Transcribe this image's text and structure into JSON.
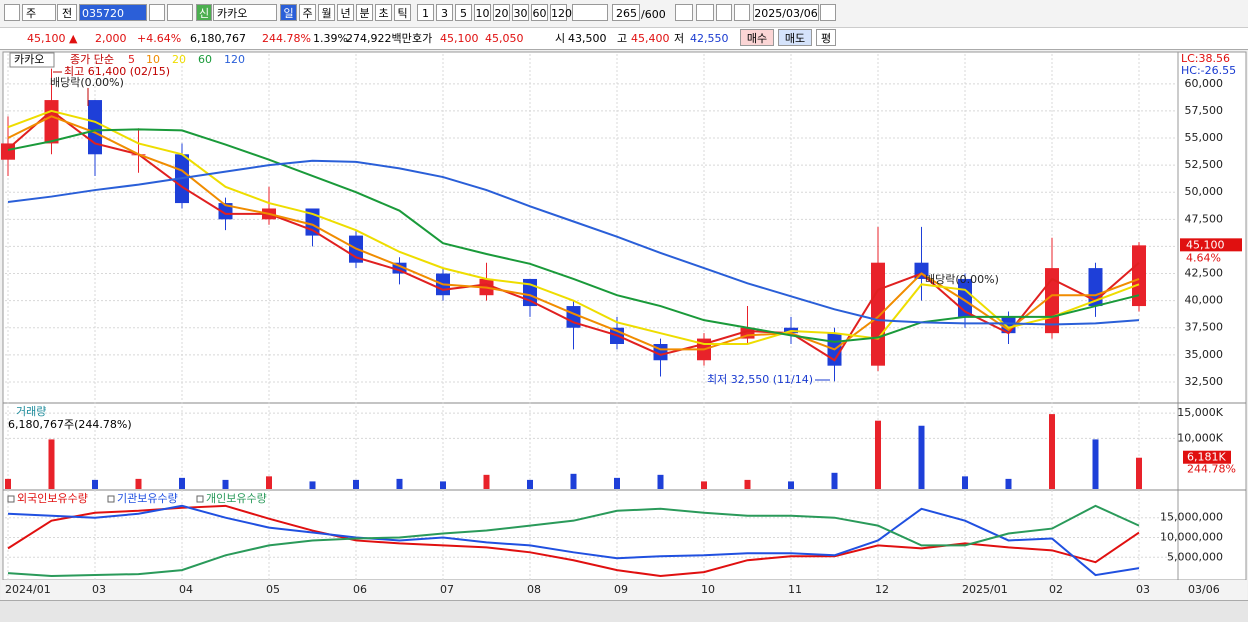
{
  "toolbar": {
    "period": "주",
    "prev": "전",
    "code": "035720",
    "badge": "신",
    "name": "카카오",
    "intervals": [
      "일",
      "주",
      "월",
      "년",
      "분",
      "초",
      "틱"
    ],
    "multipliers": [
      "1",
      "3",
      "5",
      "10",
      "20",
      "30",
      "60",
      "120"
    ],
    "count": "265",
    "max": "/600",
    "date": "2025/03/06"
  },
  "quote": {
    "price": "45,100",
    "arrow": "▲",
    "change": "2,000",
    "rate": "+4.64%",
    "volume": "6,180,767",
    "volume_rate": "244.78%",
    "turnover": "1.39%",
    "amount": "274,922백만",
    "ask_label": "호가",
    "ask": "45,100",
    "bid": "45,050",
    "open_label": "시",
    "open": "43,500",
    "high_label": "고",
    "high": "45,400",
    "low_label": "저",
    "low": "42,550",
    "buy": "매수",
    "sell": "매도",
    "avg": "평"
  },
  "x_end_label": "03/06",
  "chart_data": [
    {
      "type": "candlestick",
      "title": "카카오",
      "legend_label": "종가 단순",
      "up_color": "#e8222a",
      "down_color": "#1e3fd8",
      "open": [
        53000,
        54500,
        58500,
        53500,
        53500,
        49000,
        47500,
        48500,
        46000,
        43500,
        42500,
        40500,
        42000,
        39500,
        37500,
        36000,
        34500,
        36500,
        37500,
        37000,
        34000,
        43500,
        42000,
        38500,
        37000,
        43000,
        39500
      ],
      "high": [
        57000,
        61400,
        58500,
        55900,
        54500,
        49500,
        50500,
        48500,
        46500,
        44000,
        43000,
        43500,
        42000,
        40000,
        38500,
        36500,
        37000,
        39500,
        38500,
        37500,
        46800,
        46800,
        42500,
        39000,
        45800,
        43500,
        45400
      ],
      "low": [
        51500,
        53500,
        51500,
        51800,
        48500,
        46500,
        47000,
        45000,
        43000,
        41500,
        40000,
        40000,
        38500,
        35500,
        35500,
        33000,
        34000,
        36000,
        36000,
        32550,
        33500,
        40000,
        37500,
        36000,
        36500,
        38500,
        39000
      ],
      "close": [
        54500,
        58500,
        53500,
        53500,
        49000,
        47500,
        48500,
        46000,
        43500,
        42500,
        40500,
        42000,
        39500,
        37500,
        36000,
        34500,
        36500,
        37500,
        37000,
        34000,
        43500,
        42000,
        38500,
        37000,
        43000,
        39500,
        45100
      ],
      "series": [
        {
          "name": "5",
          "color": "#e02020",
          "values": [
            54000,
            57500,
            54500,
            53500,
            50500,
            48000,
            48000,
            46500,
            44000,
            42800,
            41000,
            41500,
            40000,
            38000,
            36800,
            35000,
            36000,
            37200,
            37000,
            34500,
            41000,
            42500,
            39000,
            37000,
            42000,
            40000,
            43500
          ]
        },
        {
          "name": "10",
          "color": "#f08c00",
          "values": [
            55000,
            57000,
            55500,
            53500,
            52000,
            48800,
            48000,
            47000,
            44800,
            43200,
            41500,
            41200,
            40500,
            38800,
            37200,
            35500,
            35500,
            36800,
            37000,
            35500,
            38500,
            42500,
            40000,
            37300,
            40500,
            40500,
            42000
          ]
        },
        {
          "name": "20",
          "color": "#eedd00",
          "values": [
            56000,
            57500,
            56500,
            54500,
            53500,
            50500,
            49000,
            48000,
            46500,
            44500,
            43000,
            42000,
            41500,
            40000,
            38000,
            37000,
            36000,
            36000,
            37200,
            37000,
            36500,
            41500,
            41000,
            37500,
            38500,
            40000,
            41500
          ]
        },
        {
          "name": "60",
          "color": "#1a9a3a",
          "values": [
            53900,
            54700,
            55700,
            55800,
            55700,
            54400,
            53000,
            51500,
            50000,
            48300,
            45300,
            44300,
            43400,
            42000,
            40500,
            39500,
            38200,
            37500,
            36800,
            36200,
            36600,
            38000,
            38500,
            38500,
            38500,
            39500,
            40500
          ]
        },
        {
          "name": "120",
          "color": "#2a5fd8",
          "values": [
            49100,
            49600,
            50200,
            50700,
            51300,
            51900,
            52500,
            52900,
            52800,
            52200,
            51400,
            50200,
            48700,
            47300,
            45900,
            44400,
            43000,
            41600,
            40400,
            39200,
            38200,
            38000,
            37900,
            37900,
            37800,
            37900,
            38200
          ]
        }
      ],
      "ylim": [
        30650,
        62750
      ],
      "yticks": [
        {
          "value": 32500,
          "label": "32,500"
        },
        {
          "value": 35000,
          "label": "35,000"
        },
        {
          "value": 37500,
          "label": "37,500"
        },
        {
          "value": 40000,
          "label": "40,000"
        },
        {
          "value": 42500,
          "label": "42,500"
        },
        {
          "value": 45000,
          "label": "45,000"
        },
        {
          "value": 47500,
          "label": "47,500"
        },
        {
          "value": 50000,
          "label": "50,000"
        },
        {
          "value": 52500,
          "label": "52,500"
        },
        {
          "value": 55000,
          "label": "55,000"
        },
        {
          "value": 57500,
          "label": "57,500"
        },
        {
          "value": 60000,
          "label": "60,000"
        }
      ],
      "annotations": [
        "최고 61,400 (02/15)",
        "배당락(0.00%)",
        "배당락(0.00%)",
        "최저 32,550 (11/14)"
      ],
      "lc": "LC:38.56",
      "hc": "HC:-26.55",
      "last_label": "45,100",
      "last_rate": "4.64%",
      "grid": true
    },
    {
      "type": "bar",
      "title": "거래량",
      "subtitle": "6,180,767주(244.78%)",
      "values": [
        2000,
        9800,
        1800,
        2000,
        2200,
        1800,
        2500,
        1500,
        1800,
        2000,
        1500,
        2800,
        1800,
        3000,
        2200,
        2800,
        1500,
        1800,
        1500,
        3200,
        13500,
        12500,
        2500,
        2000,
        14800,
        9800,
        6181
      ],
      "ylim": [
        0,
        16600
      ],
      "yticks": [
        {
          "value": 10000,
          "label": "10,000K"
        },
        {
          "value": 15000,
          "label": "15,000K"
        }
      ],
      "last_label": "6,181K",
      "last_rate": "244.78%",
      "grid": true
    },
    {
      "type": "line",
      "categories": [
        "2024/01",
        null,
        "03",
        null,
        "04",
        null,
        "05",
        null,
        "06",
        null,
        "07",
        null,
        "08",
        null,
        "09",
        null,
        "10",
        null,
        "11",
        null,
        "12",
        null,
        "2025/01",
        null,
        "02",
        null,
        "03"
      ],
      "series": [
        {
          "name": "외국인보유수량",
          "color": "#e01010",
          "values": [
            7250000,
            14250000,
            16250000,
            16750000,
            17500000,
            18000000,
            14750000,
            11750000,
            9250000,
            8500000,
            8000000,
            7500000,
            6250000,
            4250000,
            1750000,
            250000,
            1250000,
            4250000,
            5250000,
            5250000,
            8000000,
            7250000,
            8500000,
            7500000,
            6750000,
            3750000,
            11250000
          ]
        },
        {
          "name": "기관보유수량",
          "color": "#2050e0",
          "values": [
            16000000,
            15500000,
            15000000,
            16000000,
            18000000,
            15000000,
            12500000,
            11250000,
            10000000,
            9250000,
            10000000,
            8750000,
            8000000,
            6250000,
            4750000,
            5250000,
            5500000,
            6000000,
            6000000,
            5500000,
            9250000,
            17250000,
            14250000,
            9250000,
            9750000,
            500000,
            2250000
          ]
        },
        {
          "name": "개인보유수량",
          "color": "#2a9a5a",
          "values": [
            1000000,
            250000,
            500000,
            750000,
            1750000,
            5500000,
            8000000,
            9250000,
            9750000,
            10000000,
            11000000,
            11750000,
            13000000,
            14250000,
            16750000,
            17250000,
            16250000,
            15500000,
            15500000,
            15000000,
            13000000,
            8000000,
            8000000,
            11000000,
            12250000,
            18000000,
            13000000
          ]
        }
      ],
      "ylim": [
        -750000,
        21750000
      ],
      "yticks": [
        {
          "value": 5000000,
          "label": "5,000,000"
        },
        {
          "value": 10000000,
          "label": "10,000,000"
        },
        {
          "value": 15000000,
          "label": "15,000,000"
        }
      ],
      "grid": true
    }
  ]
}
